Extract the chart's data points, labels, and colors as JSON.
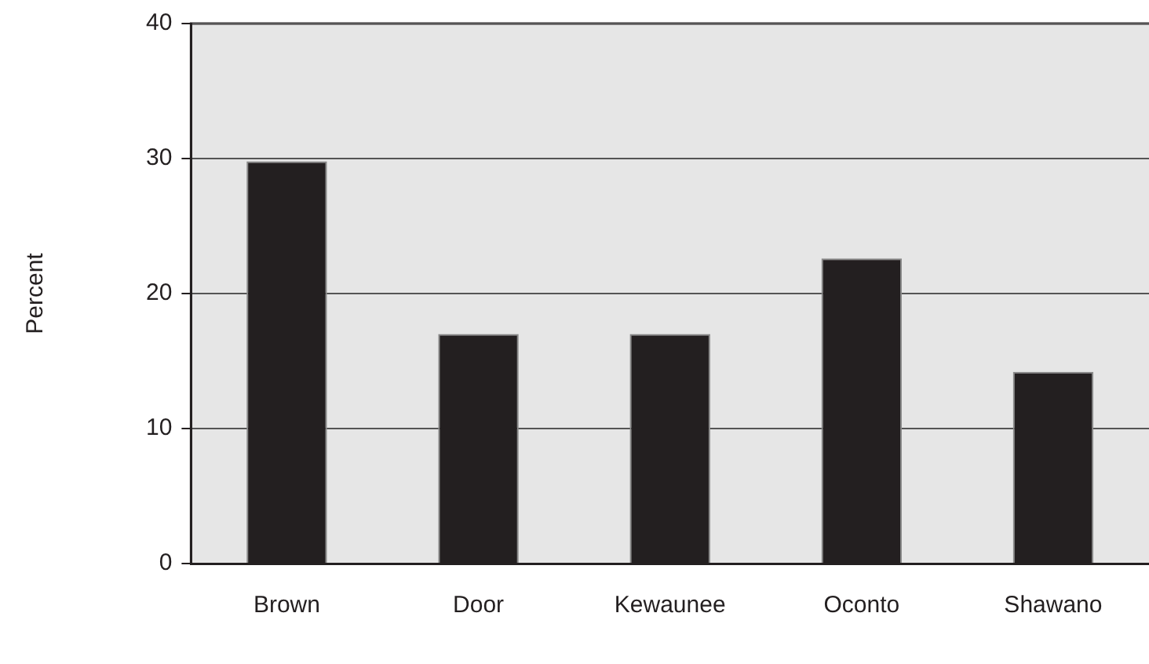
{
  "chart_data": {
    "type": "bar",
    "ylabel": "Percent",
    "categories": [
      "Brown",
      "Door",
      "Kewaunee",
      "Oconto",
      "Shawano"
    ],
    "values": [
      29.8,
      17.0,
      17.0,
      22.6,
      14.2
    ],
    "color": "#231f20",
    "ylim": [
      0,
      40
    ],
    "yticks": [
      0,
      10,
      20,
      30,
      40
    ],
    "grid": "y",
    "legend": false
  }
}
